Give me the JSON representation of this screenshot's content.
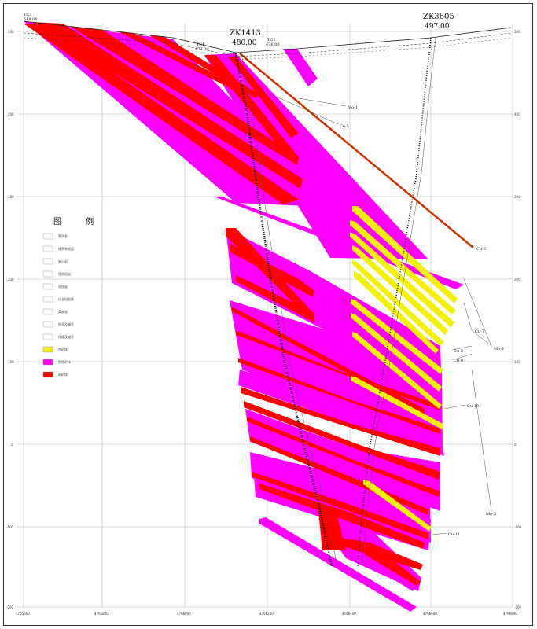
{
  "colors": {
    "magenta": "#ff00ff",
    "red": "#ff0000",
    "yellow": "#f2f200",
    "brown": "#c83200",
    "grid": "#b0b0b0"
  },
  "header": {
    "zk1413_name": "ZK1413",
    "zk1413_elev": "480.00",
    "zk3605_name": "ZK3605",
    "zk3605_elev": "497.00",
    "tc3_name": "TC3",
    "tc3_elev": "518.00",
    "tc1_name": "TC1",
    "tc1_elev": "477.00",
    "tc2_name": "TC2",
    "tc2_elev": "476.00"
  },
  "elevation_labels": [
    "500",
    "400",
    "300",
    "200",
    "100",
    "0",
    "-100",
    "-200"
  ],
  "easting_labels": [
    "4765600",
    "4765800",
    "4766000",
    "4766200",
    "4766400",
    "4766600",
    "4766800"
  ],
  "orebody_labels": {
    "mo1": "Mo-1",
    "cu5": "Cu-5",
    "cu6": "Cu-6",
    "cu7": "Cu-7",
    "cu8": "Cu-8",
    "cu9": "Cu-9",
    "mo2": "Mo-2",
    "cu10": "Cu-10",
    "mo3": "Mo-3",
    "cu11": "Cu-11"
  },
  "legend": {
    "title": "图  例",
    "items": [
      "第四系",
      "侏罗系地层",
      "安山岩",
      "花岗斑岩",
      "流纹岩",
      "闪长玢岩脉",
      "英安岩",
      "钻孔及编号",
      "探槽及编号",
      "钼矿体",
      "铜钼矿体",
      "铜矿体"
    ]
  }
}
